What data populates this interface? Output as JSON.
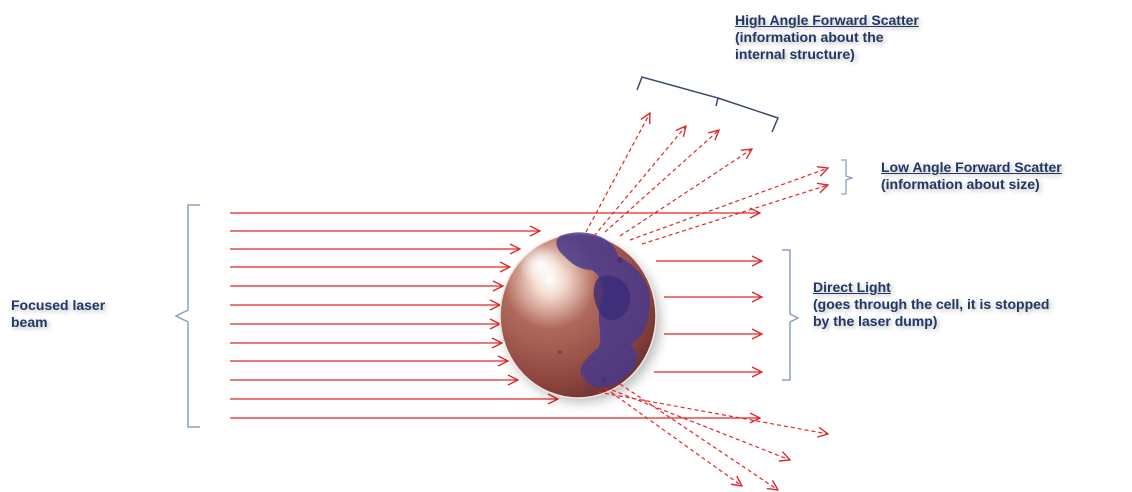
{
  "labels": {
    "high_angle": {
      "title": "High Angle Forward Scatter",
      "line1": "(information about the",
      "line2": "internal structure)"
    },
    "low_angle": {
      "title": "Low Angle Forward Scatter",
      "line1": "(information about size)"
    },
    "direct_light": {
      "title": "Direct Light",
      "line1": "(goes through the cell, it is stopped",
      "line2": "by the laser dump)"
    },
    "laser_beam": {
      "line1": "Focused laser",
      "line2": "beam"
    }
  },
  "colors": {
    "beam": "#e0282a",
    "text": "#1f3864",
    "bracket": "#8aa0c0",
    "bracket_dark": "#3a4a6a",
    "cell_body": "#9c5048",
    "nucleus": "#4a3a8c"
  }
}
